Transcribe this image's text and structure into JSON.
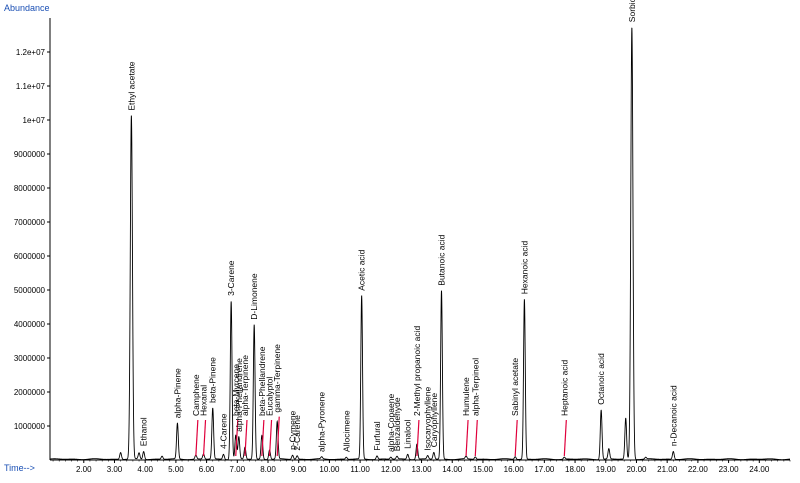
{
  "chart_data": {
    "type": "line",
    "ylabel": "Abundance",
    "xlabel": "Time-->",
    "xlim": [
      0.9,
      25.0
    ],
    "ylim": [
      0,
      13000000
    ],
    "x_ticks": [
      {
        "value": 2.0,
        "label": "2.00"
      },
      {
        "value": 3.0,
        "label": "3.00"
      },
      {
        "value": 4.0,
        "label": "4.00"
      },
      {
        "value": 5.0,
        "label": "5.00"
      },
      {
        "value": 6.0,
        "label": "6.00"
      },
      {
        "value": 7.0,
        "label": "7.00"
      },
      {
        "value": 8.0,
        "label": "8.00"
      },
      {
        "value": 9.0,
        "label": "9.00"
      },
      {
        "value": 10.0,
        "label": "10.00"
      },
      {
        "value": 11.0,
        "label": "11.00"
      },
      {
        "value": 12.0,
        "label": "12.00"
      },
      {
        "value": 13.0,
        "label": "13.00"
      },
      {
        "value": 14.0,
        "label": "14.00"
      },
      {
        "value": 15.0,
        "label": "15.00"
      },
      {
        "value": 16.0,
        "label": "16.00"
      },
      {
        "value": 17.0,
        "label": "17.00"
      },
      {
        "value": 18.0,
        "label": "18.00"
      },
      {
        "value": 19.0,
        "label": "19.00"
      },
      {
        "value": 20.0,
        "label": "20.00"
      },
      {
        "value": 21.0,
        "label": "21.00"
      },
      {
        "value": 22.0,
        "label": "22.00"
      },
      {
        "value": 23.0,
        "label": "23.00"
      },
      {
        "value": 24.0,
        "label": "24.00"
      }
    ],
    "y_ticks": [
      {
        "value": 1000000,
        "label": "1000000"
      },
      {
        "value": 2000000,
        "label": "2000000"
      },
      {
        "value": 3000000,
        "label": "3000000"
      },
      {
        "value": 4000000,
        "label": "4000000"
      },
      {
        "value": 5000000,
        "label": "5000000"
      },
      {
        "value": 6000000,
        "label": "6000000"
      },
      {
        "value": 7000000,
        "label": "7000000"
      },
      {
        "value": 8000000,
        "label": "8000000"
      },
      {
        "value": 9000000,
        "label": "9000000"
      },
      {
        "value": 10000000,
        "label": "1e+07"
      },
      {
        "value": 11000000,
        "label": "1.1e+07"
      },
      {
        "value": 12000000,
        "label": "1.2e+07"
      }
    ],
    "peaks": [
      {
        "name": "Ethyl acetate",
        "rt": 3.55,
        "height": 10100000,
        "label_color": "black"
      },
      {
        "name": "Ethanol",
        "rt": 3.95,
        "height": 230000,
        "label_color": "black"
      },
      {
        "name": "alpha-Pinene",
        "rt": 5.05,
        "height": 1050000,
        "label_color": "black"
      },
      {
        "name": "Camphene",
        "rt": 5.65,
        "height": 120000,
        "label_color": "red"
      },
      {
        "name": "Hexanal",
        "rt": 5.9,
        "height": 150000,
        "label_color": "red"
      },
      {
        "name": "beta-Pinene",
        "rt": 6.2,
        "height": 1500000,
        "label_color": "black"
      },
      {
        "name": "4-Carene",
        "rt": 6.55,
        "height": 150000,
        "label_color": "black"
      },
      {
        "name": "3-Carene",
        "rt": 6.8,
        "height": 4650000,
        "label_color": "black"
      },
      {
        "name": "beta-Myrcene",
        "rt": 6.95,
        "height": 700000,
        "label_color": "red"
      },
      {
        "name": "alpha-Phellandrene",
        "rt": 7.05,
        "height": 650000,
        "label_color": "black"
      },
      {
        "name": "alpha-Terpinene",
        "rt": 7.25,
        "height": 350000,
        "label_color": "red"
      },
      {
        "name": "D-Limonene",
        "rt": 7.55,
        "height": 3950000,
        "label_color": "black"
      },
      {
        "name": "beta-Phellandrene",
        "rt": 7.8,
        "height": 700000,
        "label_color": "red"
      },
      {
        "name": "Eucalyptol",
        "rt": 8.05,
        "height": 280000,
        "label_color": "red"
      },
      {
        "name": "gamma-Terpinene",
        "rt": 8.3,
        "height": 1100000,
        "label_color": "red"
      },
      {
        "name": "p-Cymene",
        "rt": 8.8,
        "height": 120000,
        "label_color": "black"
      },
      {
        "name": "2-Carene",
        "rt": 8.95,
        "height": 100000,
        "label_color": "black"
      },
      {
        "name": "alpha-Pyronene",
        "rt": 9.75,
        "height": 60000,
        "label_color": "black"
      },
      {
        "name": "Allocimene",
        "rt": 10.55,
        "height": 60000,
        "label_color": "black"
      },
      {
        "name": "Acetic acid",
        "rt": 11.05,
        "height": 4800000,
        "label_color": "black"
      },
      {
        "name": "Furfural",
        "rt": 11.55,
        "height": 100000,
        "label_color": "black"
      },
      {
        "name": "alpha-Copaene",
        "rt": 12.0,
        "height": 60000,
        "label_color": "black"
      },
      {
        "name": "Benzaldehyde",
        "rt": 12.2,
        "height": 80000,
        "label_color": "black"
      },
      {
        "name": "Linalool",
        "rt": 12.55,
        "height": 150000,
        "label_color": "black"
      },
      {
        "name": "2-Methyl propanoic acid",
        "rt": 12.85,
        "height": 450000,
        "label_color": "red"
      },
      {
        "name": "Isocaryophyllene",
        "rt": 13.2,
        "height": 100000,
        "label_color": "black"
      },
      {
        "name": "Caryophyllene",
        "rt": 13.4,
        "height": 200000,
        "label_color": "black"
      },
      {
        "name": "Butanoic acid",
        "rt": 13.65,
        "height": 4950000,
        "label_color": "black"
      },
      {
        "name": "Humulene",
        "rt": 14.45,
        "height": 80000,
        "label_color": "red"
      },
      {
        "name": "alpha-Terpineol",
        "rt": 14.75,
        "height": 70000,
        "label_color": "red"
      },
      {
        "name": "Sabinyl acetate",
        "rt": 16.05,
        "height": 80000,
        "label_color": "red"
      },
      {
        "name": "Hexanoic acid",
        "rt": 16.35,
        "height": 4700000,
        "label_color": "black"
      },
      {
        "name": "Heptanoic acid",
        "rt": 17.65,
        "height": 60000,
        "label_color": "red"
      },
      {
        "name": "Octanoic acid",
        "rt": 18.85,
        "height": 1450000,
        "label_color": "black"
      },
      {
        "name": "Sorbic acid",
        "rt": 19.85,
        "height": 12700000,
        "label_color": "black"
      },
      {
        "name": "n-Decanoic acid",
        "rt": 21.2,
        "height": 230000,
        "label_color": "black"
      }
    ],
    "unlabeled_peaks": [
      {
        "rt": 3.2,
        "height": 200000
      },
      {
        "rt": 3.8,
        "height": 180000
      },
      {
        "rt": 4.55,
        "height": 90000
      },
      {
        "rt": 19.1,
        "height": 300000
      },
      {
        "rt": 19.65,
        "height": 1200000
      },
      {
        "rt": 20.3,
        "height": 50000
      }
    ],
    "colors": {
      "trace": "#000000",
      "axis_title": "#1a4fb4",
      "leader_red": "#e0003c",
      "leader_black": "#000000"
    }
  }
}
